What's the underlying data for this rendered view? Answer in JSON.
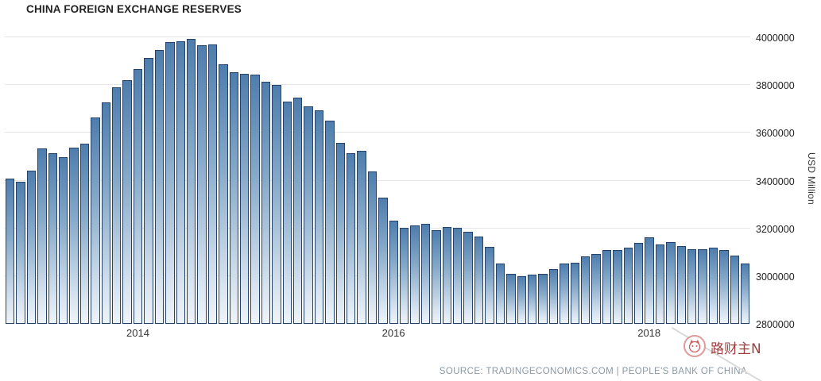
{
  "title": "CHINA FOREIGN EXCHANGE RESERVES",
  "source": "SOURCE: TRADINGECONOMICS.COM | PEOPLE'S BANK OF CHINA",
  "watermark": "路财主N",
  "chart_data": {
    "type": "bar",
    "title": "CHINA FOREIGN EXCHANGE RESERVES",
    "xlabel": "",
    "ylabel": "USD Million",
    "ylim": [
      2800000,
      4000000
    ],
    "yticks": [
      2800000,
      3000000,
      3200000,
      3400000,
      3600000,
      3800000,
      4000000
    ],
    "grid": "horizontal",
    "legend": "none",
    "bar_color_top": "#4e7dad",
    "bar_color_bottom": "#eef3f8",
    "bar_border_color": "#24436b",
    "xticks": [
      {
        "label": "2014",
        "index": 12
      },
      {
        "label": "2016",
        "index": 36
      },
      {
        "label": "2018",
        "index": 60
      }
    ],
    "categories": [
      "2013-01",
      "2013-02",
      "2013-03",
      "2013-04",
      "2013-05",
      "2013-06",
      "2013-07",
      "2013-08",
      "2013-09",
      "2013-10",
      "2013-11",
      "2013-12",
      "2014-01",
      "2014-02",
      "2014-03",
      "2014-04",
      "2014-05",
      "2014-06",
      "2014-07",
      "2014-08",
      "2014-09",
      "2014-10",
      "2014-11",
      "2014-12",
      "2015-01",
      "2015-02",
      "2015-03",
      "2015-04",
      "2015-05",
      "2015-06",
      "2015-07",
      "2015-08",
      "2015-09",
      "2015-10",
      "2015-11",
      "2015-12",
      "2016-01",
      "2016-02",
      "2016-03",
      "2016-04",
      "2016-05",
      "2016-06",
      "2016-07",
      "2016-08",
      "2016-09",
      "2016-10",
      "2016-11",
      "2016-12",
      "2017-01",
      "2017-02",
      "2017-03",
      "2017-04",
      "2017-05",
      "2017-06",
      "2017-07",
      "2017-08",
      "2017-09",
      "2017-10",
      "2017-11",
      "2017-12",
      "2018-01",
      "2018-02",
      "2018-03",
      "2018-04",
      "2018-05",
      "2018-06",
      "2018-07",
      "2018-08",
      "2018-09",
      "2018-10"
    ],
    "values": [
      3410000,
      3395000,
      3443000,
      3535000,
      3515000,
      3497000,
      3539000,
      3553000,
      3663000,
      3727000,
      3789000,
      3821000,
      3867000,
      3913000,
      3948000,
      3979000,
      3984000,
      3993000,
      3966000,
      3969000,
      3888000,
      3853000,
      3847000,
      3843000,
      3813000,
      3802000,
      3730000,
      3748000,
      3711000,
      3694000,
      3651000,
      3557000,
      3514000,
      3526000,
      3438000,
      3330000,
      3231000,
      3202000,
      3213000,
      3220000,
      3192000,
      3205000,
      3201000,
      3185000,
      3166000,
      3121000,
      3052000,
      3011000,
      2998000,
      3005000,
      3009000,
      3030000,
      3054000,
      3057000,
      3081000,
      3092000,
      3109000,
      3109000,
      3119000,
      3140000,
      3161000,
      3134000,
      3143000,
      3125000,
      3111000,
      3112000,
      3118000,
      3110000,
      3087000,
      3053000
    ]
  }
}
